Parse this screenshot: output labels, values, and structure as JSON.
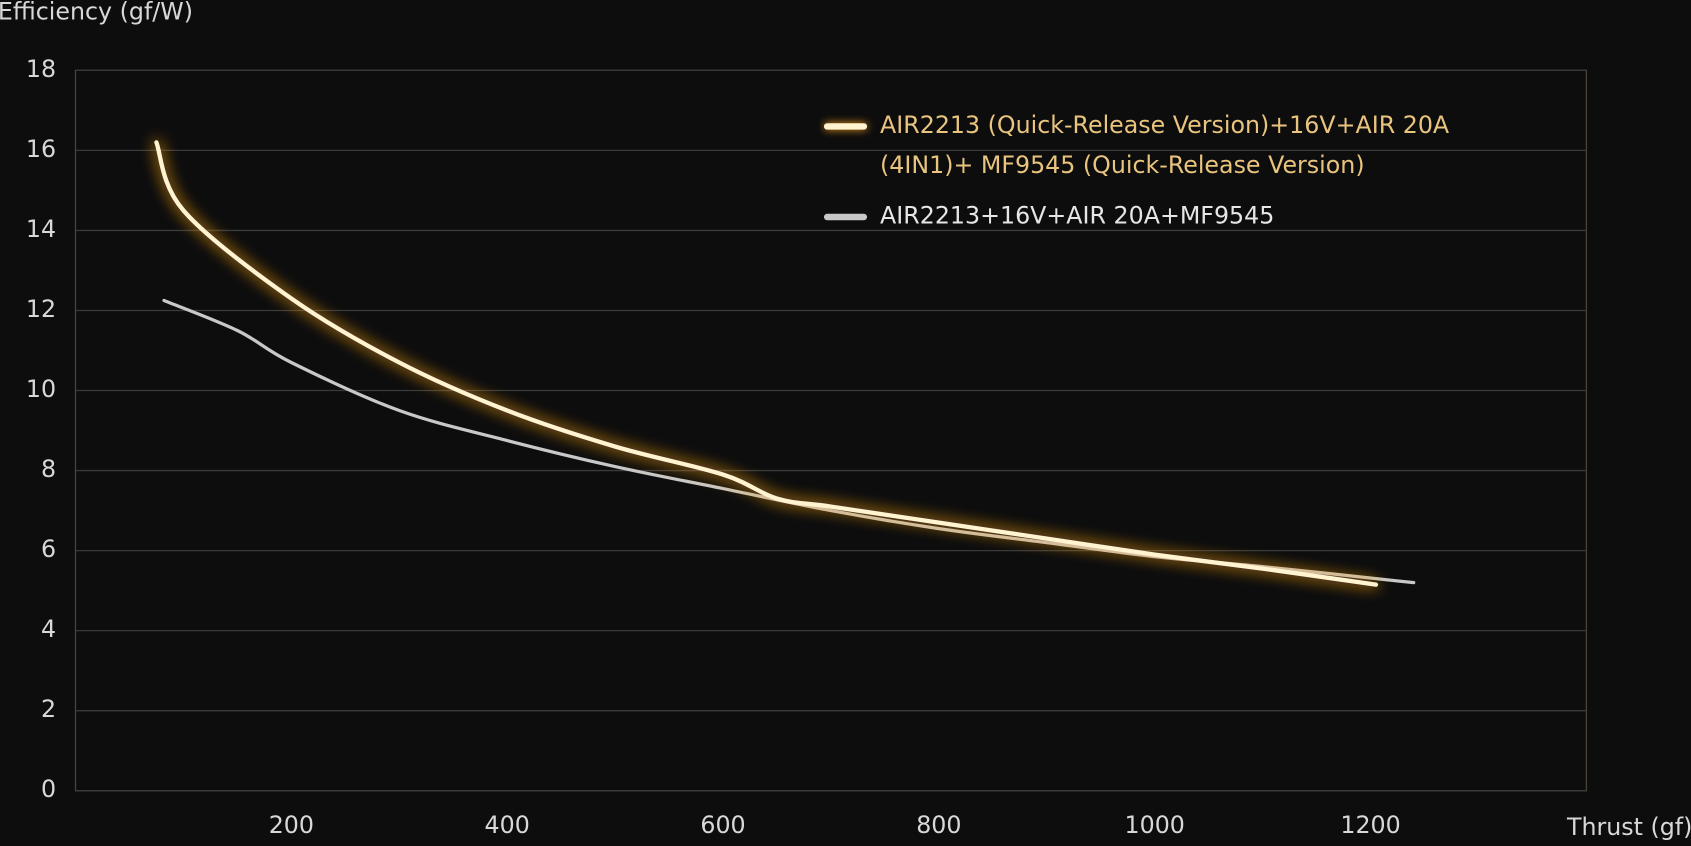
{
  "chart_data": {
    "type": "line",
    "ylabel": "Efficiency (gf/W)",
    "xlabel": "Thrust (gf)",
    "xlim": [
      0,
      1400
    ],
    "ylim": [
      0,
      18
    ],
    "xticks": [
      200,
      400,
      600,
      800,
      1000,
      1200
    ],
    "yticks": [
      0,
      2,
      4,
      6,
      8,
      10,
      12,
      14,
      16,
      18
    ],
    "grid": true,
    "legend": "upper right",
    "series": [
      {
        "name": "AIR2213 (Quick-Release Version)+16V+AIR 20A (4IN1)+ MF9545 (Quick-Release Version)",
        "color": "#fff4cf",
        "glow": "#f5a020",
        "label_color": "#e9c47e",
        "x": [
          75,
          100,
          200,
          300,
          400,
          500,
          600,
          650,
          700,
          800,
          900,
          1000,
          1100,
          1205
        ],
        "values": [
          16.2,
          14.5,
          12.3,
          10.7,
          9.5,
          8.6,
          7.9,
          7.3,
          7.1,
          6.7,
          6.3,
          5.9,
          5.55,
          5.15
        ]
      },
      {
        "name": "AIR2213+16V+AIR 20A+MF9545",
        "color": "#c8c8c8",
        "label_color": "#e6e6e6",
        "x": [
          82,
          150,
          200,
          300,
          400,
          500,
          600,
          700,
          800,
          900,
          1000,
          1100,
          1240
        ],
        "values": [
          12.25,
          11.5,
          10.7,
          9.5,
          8.75,
          8.1,
          7.55,
          7.0,
          6.55,
          6.2,
          5.85,
          5.6,
          5.2
        ]
      }
    ]
  }
}
